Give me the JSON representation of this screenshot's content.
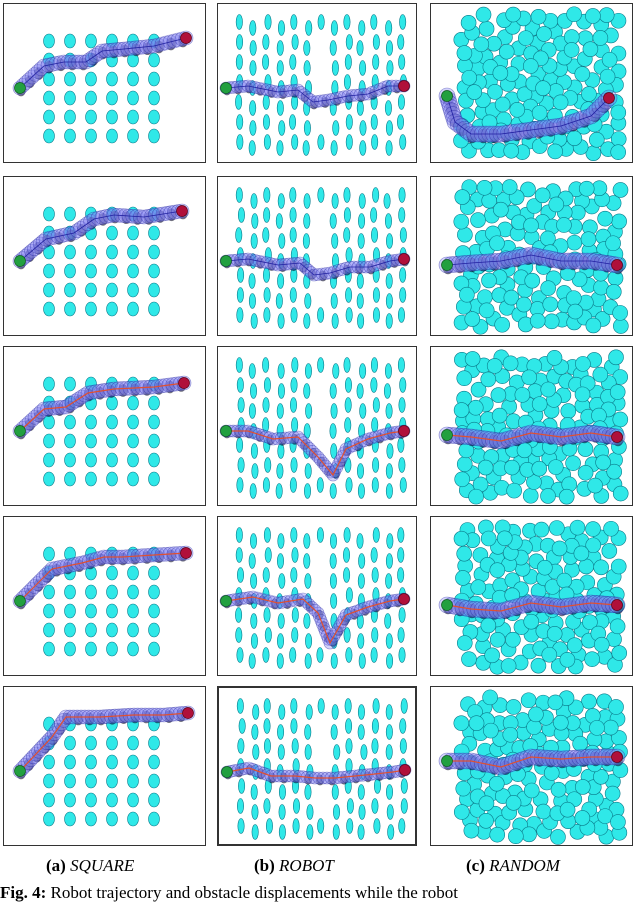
{
  "columns": [
    {
      "label": "(a)",
      "name": "SQUARE"
    },
    {
      "label": "(b)",
      "name": "ROBOT"
    },
    {
      "label": "(c)",
      "name": "RANDOM"
    }
  ],
  "rows": 5,
  "figure_caption": {
    "label": "Fig. 4:",
    "text": "Robot trajectory and obstacle displacements while the robot"
  },
  "colors": {
    "obstacle": "#2fe8e8",
    "obstacle_stroke": "#0a7a8a",
    "robot": "#8080f0",
    "robot_stroke": "#2020a0",
    "start": "#22a040",
    "goal": "#b0103a",
    "path_line": "#e05030",
    "shadow": "#000018"
  }
}
